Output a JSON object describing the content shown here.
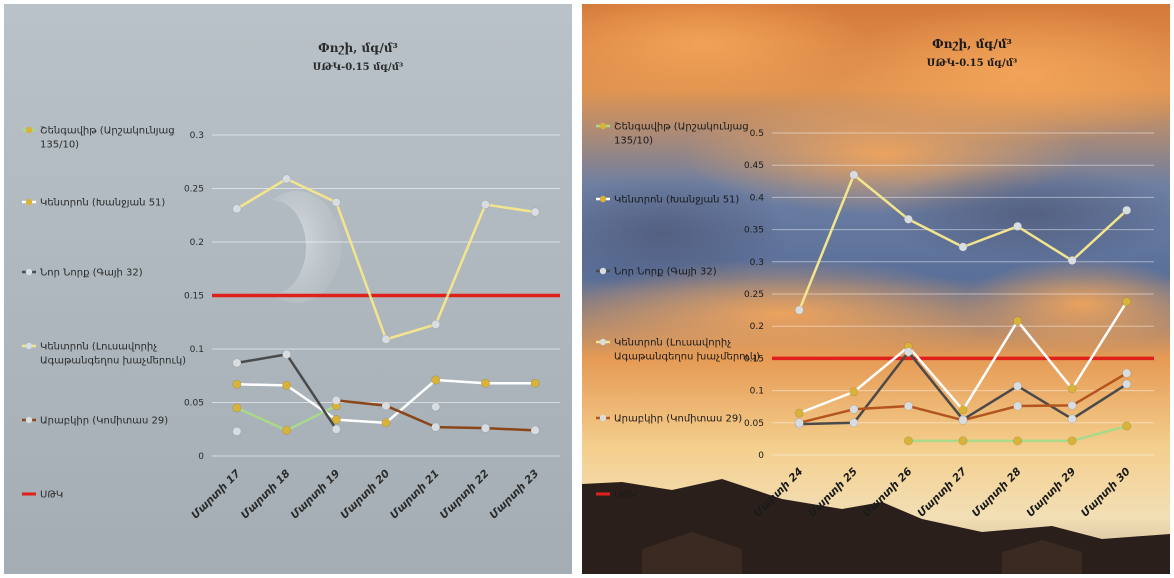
{
  "chart_data": [
    {
      "type": "line",
      "title": "Փոշի, մգ/մ³",
      "subtitle": "ՍԹԿ-0.15 մգ/մ³",
      "ylim": [
        0,
        0.3
      ],
      "y_ticks": [
        "0",
        "0.05",
        "0.1",
        "0.15",
        "0.2",
        "0.25",
        "0.3"
      ],
      "categories": [
        "Մարտի 17",
        "Մարտի 18",
        "Մարտի 19",
        "Մարտի 20",
        "Մարտի 21",
        "Մարտի 22",
        "Մարտի 23"
      ],
      "threshold": {
        "name": "ՍԹԿ",
        "value": 0.15,
        "color": "#e0201a"
      },
      "grid": true,
      "background": "gray-gradient-with-moon",
      "series": [
        {
          "name": "Շենգավիթ (Արշակունյաց 135/10)",
          "color": "#a9d98a",
          "marker": "#d9b23a",
          "values": [
            0.045,
            0.024,
            0.047,
            null,
            null,
            null,
            null
          ]
        },
        {
          "name": "Կենտրոն (Խանջյան 51)",
          "color": "#ffffff",
          "marker": "#d9b23a",
          "values": [
            0.067,
            0.066,
            0.034,
            0.031,
            0.071,
            0.068,
            0.068
          ]
        },
        {
          "name": "Նոր Նորք (Գայի 32)",
          "color": "#4a4a4a",
          "marker": "#d8dde2",
          "values": [
            0.087,
            0.095,
            0.025,
            null,
            null,
            null,
            null
          ]
        },
        {
          "name": "Կենտրոն (Լուսավորիչ Ագաթանգեղոս խաչմերուկ)",
          "color": "#f3e58e",
          "marker": "#d8dde2",
          "values": [
            0.231,
            0.259,
            0.237,
            0.109,
            0.123,
            0.235,
            0.228
          ]
        },
        {
          "name": "Արաբկիր (Կոմիտաս 29)",
          "color": "#8a4518",
          "marker": "#d8dde2",
          "values": [
            0.023,
            null,
            0.052,
            0.047,
            0.027,
            0.026,
            0.024
          ]
        }
      ],
      "extra_points": [
        {
          "x_index": 4,
          "value": 0.046,
          "color": "#d8dde2"
        }
      ]
    },
    {
      "type": "line",
      "title": "Փոշի, մգ/մ³",
      "subtitle": "ՍԹԿ-0.15 մգ/մ³",
      "ylim": [
        0,
        0.5
      ],
      "y_ticks": [
        "0",
        "0.05",
        "0.1",
        "0.15",
        "0.2",
        "0.25",
        "0.3",
        "0.35",
        "0.4",
        "0.45",
        "0.5"
      ],
      "categories": [
        "Մարտի 24",
        "Մարտի 25",
        "Մարտի 26",
        "Մարտի 27",
        "Մարտի 28",
        "Մարտի 29",
        "Մարտի 30"
      ],
      "threshold": {
        "name": "ՍԹԿ",
        "value": 0.15,
        "color": "#e0201a"
      },
      "grid": true,
      "background": "sunset-sky-photo",
      "series": [
        {
          "name": "Շենգավիթ (Արշակունյաց 135/10)",
          "color": "#a9d98a",
          "marker": "#d9b23a",
          "values": [
            null,
            null,
            0.022,
            0.022,
            0.022,
            0.022,
            0.045
          ]
        },
        {
          "name": "Կենտրոն (Խանջյան 51)",
          "color": "#ffffff",
          "marker": "#d9b23a",
          "values": [
            0.065,
            0.098,
            0.168,
            0.07,
            0.208,
            0.103,
            0.238
          ]
        },
        {
          "name": "Նոր Նորք (Գայի 32)",
          "color": "#4a4a4a",
          "marker": "#d8dde2",
          "values": [
            0.048,
            0.05,
            0.16,
            0.055,
            0.107,
            0.056,
            0.11
          ]
        },
        {
          "name": "Կենտրոն (Լուսավորիչ Ագաթանգեղոս խաչմերուկ)",
          "color": "#f3e58e",
          "marker": "#d8dde2",
          "values": [
            0.225,
            0.435,
            0.366,
            0.323,
            0.355,
            0.302,
            0.38
          ]
        },
        {
          "name": "Արաբկիր (Կոմիտաս 29)",
          "color": "#b4551f",
          "marker": "#d8dde2",
          "values": [
            0.05,
            0.071,
            0.076,
            0.054,
            0.076,
            0.077,
            0.127
          ]
        }
      ],
      "extra_points": []
    }
  ]
}
